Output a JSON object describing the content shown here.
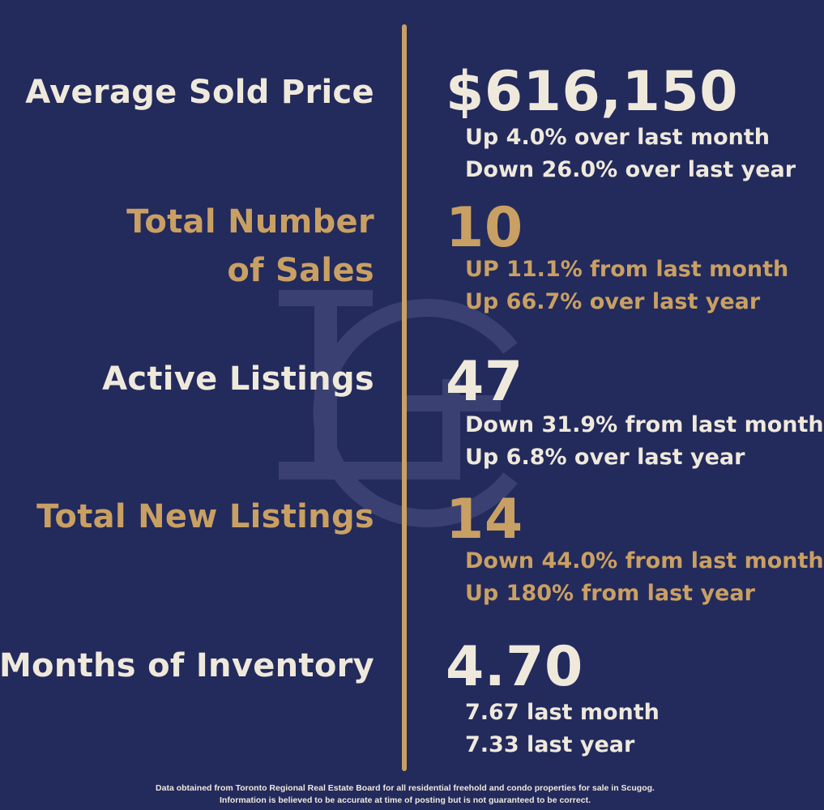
{
  "colors": {
    "background": "#232a5c",
    "gold": "#c9a063",
    "cream": "#efe9dc",
    "watermark": "#3a4172"
  },
  "watermark": {
    "icon": "lc-monogram-icon"
  },
  "metrics": [
    {
      "label": "Average Sold Price",
      "value": "$616,150",
      "changes": [
        "Up 4.0% over last month",
        "Down 26.0% over last year"
      ],
      "color": "cream"
    },
    {
      "label_lines": [
        "Total Number",
        "of Sales"
      ],
      "value": "10",
      "changes": [
        "UP 11.1% from last month",
        "Up 66.7% over last year"
      ],
      "color": "gold"
    },
    {
      "label": "Active Listings",
      "value": "47",
      "changes": [
        "Down 31.9% from last month",
        "Up 6.8% over last year"
      ],
      "color": "cream"
    },
    {
      "label": "Total New Listings",
      "value": "14",
      "changes": [
        "Down 44.0% from last month",
        "Up 180% from last year"
      ],
      "color": "gold"
    },
    {
      "label": "Months of Inventory",
      "value": "4.70",
      "changes": [
        "7.67 last month",
        "7.33 last year"
      ],
      "color": "cream"
    }
  ],
  "footer": {
    "line1": "Data obtained from Toronto Regional Real Estate Board for all residential freehold and condo properties for sale in Scugog.",
    "line2": "Information is believed to be accurate at time of posting but is not guaranteed to be correct."
  }
}
